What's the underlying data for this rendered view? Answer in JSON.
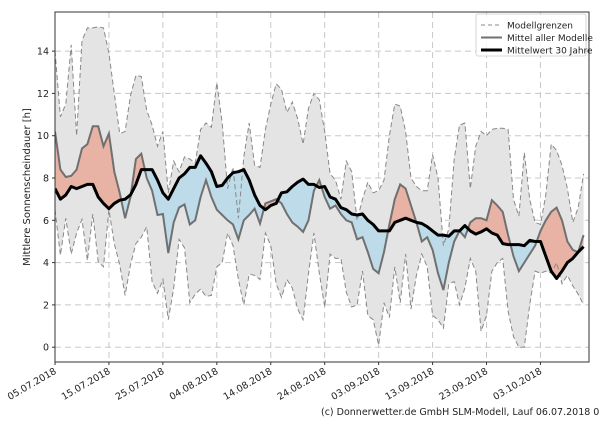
{
  "chart_data": {
    "type": "line",
    "ylabel": "Mittlere Sonnenscheindauer [h]",
    "xlabel": "",
    "ylim": [
      -0.7,
      15.85
    ],
    "xlim": [
      "05.07.2018",
      "12.10.2018"
    ],
    "yticks": [
      0,
      2,
      4,
      6,
      8,
      10,
      12,
      14
    ],
    "xticks": [
      "05.07.2018",
      "15.07.2018",
      "25.07.2018",
      "04.08.2018",
      "14.08.2018",
      "24.08.2018",
      "03.09.2018",
      "13.09.2018",
      "23.09.2018",
      "03.10.2018"
    ],
    "grid": true,
    "legend_position": "top-right",
    "legend": [
      {
        "label": "Modellgrenzen",
        "style": "dashed",
        "color": "#888888"
      },
      {
        "label": "Mittel aller Modelle",
        "style": "solid",
        "color": "#707070"
      },
      {
        "label": "Mittelwert 30 Jahre",
        "style": "solid-thick",
        "color": "#000000"
      }
    ],
    "colors": {
      "band": "#e4e4e4",
      "above": "#e8b2a4",
      "below": "#bddbe8"
    },
    "x": [
      "05.07.2018",
      "06.07.2018",
      "07.07.2018",
      "08.07.2018",
      "09.07.2018",
      "10.07.2018",
      "11.07.2018",
      "12.07.2018",
      "13.07.2018",
      "14.07.2018",
      "15.07.2018",
      "16.07.2018",
      "17.07.2018",
      "18.07.2018",
      "19.07.2018",
      "20.07.2018",
      "21.07.2018",
      "22.07.2018",
      "23.07.2018",
      "24.07.2018",
      "25.07.2018",
      "26.07.2018",
      "27.07.2018",
      "28.07.2018",
      "29.07.2018",
      "30.07.2018",
      "31.07.2018",
      "01.08.2018",
      "02.08.2018",
      "03.08.2018",
      "04.08.2018",
      "05.08.2018",
      "06.08.2018",
      "07.08.2018",
      "08.08.2018",
      "09.08.2018",
      "10.08.2018",
      "11.08.2018",
      "12.08.2018",
      "13.08.2018",
      "14.08.2018",
      "15.08.2018",
      "16.08.2018",
      "17.08.2018",
      "18.08.2018",
      "19.08.2018",
      "20.08.2018",
      "21.08.2018",
      "22.08.2018",
      "23.08.2018",
      "24.08.2018",
      "25.08.2018",
      "26.08.2018",
      "27.08.2018",
      "28.08.2018",
      "29.08.2018",
      "30.08.2018",
      "31.08.2018",
      "01.09.2018",
      "02.09.2018",
      "03.09.2018",
      "04.09.2018",
      "05.09.2018",
      "06.09.2018",
      "07.09.2018",
      "08.09.2018",
      "09.09.2018",
      "10.09.2018",
      "11.09.2018",
      "12.09.2018",
      "13.09.2018",
      "14.09.2018",
      "15.09.2018",
      "16.09.2018",
      "17.09.2018",
      "18.09.2018",
      "19.09.2018",
      "20.09.2018",
      "21.09.2018",
      "22.09.2018",
      "23.09.2018",
      "24.09.2018",
      "25.09.2018",
      "26.09.2018",
      "27.09.2018",
      "28.09.2018",
      "29.09.2018",
      "30.09.2018",
      "01.10.2018",
      "02.10.2018",
      "03.10.2018",
      "04.10.2018",
      "05.10.2018",
      "06.10.2018",
      "07.10.2018",
      "08.10.2018",
      "09.10.2018",
      "10.10.2018",
      "11.10.2018"
    ],
    "series": [
      {
        "name": "Modellgrenzen",
        "role": "upper",
        "values": [
          14.0,
          10.9,
          11.5,
          14.3,
          10.0,
          14.5,
          15.1,
          15.1,
          15.15,
          15.1,
          13.9,
          12.0,
          10.1,
          10.2,
          11.9,
          12.85,
          12.8,
          11.2,
          10.5,
          9.5,
          10.2,
          7.3,
          8.8,
          8.3,
          9.0,
          8.9,
          8.7,
          10.3,
          10.6,
          10.4,
          12.5,
          10.6,
          7.5,
          8.5,
          6.1,
          9.0,
          10.6,
          8.6,
          8.5,
          10.3,
          11.5,
          12.45,
          12.2,
          11.1,
          11.6,
          10.8,
          9.6,
          11.3,
          12.0,
          11.7,
          10.2,
          8.2,
          7.9,
          7.0,
          8.8,
          8.3,
          6.0,
          7.0,
          7.8,
          7.3,
          7.4,
          7.9,
          10.0,
          11.5,
          11.4,
          10.2,
          8.0,
          7.6,
          7.4,
          7.4,
          9.1,
          8.0,
          4.8,
          5.6,
          8.9,
          10.5,
          10.6,
          7.5,
          9.5,
          10.2,
          10.0,
          10.3,
          10.35,
          10.35,
          10.3,
          7.0,
          6.2,
          9.2,
          7.0,
          5.9,
          5.8,
          7.2,
          9.6,
          9.3,
          8.6,
          7.5,
          5.9,
          6.6,
          8.2
        ]
      },
      {
        "name": "Modellgrenzen",
        "role": "lower",
        "values": [
          6.5,
          4.35,
          6.1,
          4.4,
          5.4,
          6.05,
          4.1,
          6.3,
          4.05,
          3.8,
          6.5,
          4.9,
          3.9,
          2.45,
          3.9,
          4.9,
          5.2,
          5.7,
          3.1,
          2.55,
          3.2,
          1.3,
          2.8,
          5.1,
          4.7,
          2.1,
          2.5,
          2.75,
          2.4,
          2.45,
          3.8,
          4.0,
          5.4,
          4.8,
          3.2,
          2.0,
          3.45,
          3.4,
          3.2,
          5.4,
          4.8,
          3.0,
          2.35,
          3.2,
          2.8,
          1.8,
          1.3,
          3.5,
          5.4,
          3.5,
          1.9,
          4.4,
          4.2,
          4.2,
          2.6,
          1.9,
          2.0,
          3.6,
          1.5,
          1.3,
          0.1,
          2.1,
          1.4,
          3.8,
          2.1,
          4.4,
          1.8,
          3.4,
          4.4,
          3.8,
          1.5,
          1.3,
          0.9,
          3.0,
          3.1,
          2.0,
          2.8,
          4.2,
          3.6,
          0.75,
          1.5,
          3.6,
          4.0,
          4.2,
          1.7,
          0.5,
          0.0,
          0.0,
          2.0,
          3.6,
          3.5,
          3.6,
          3.5,
          4.0,
          3.0,
          3.4,
          2.9,
          2.5,
          2.0
        ]
      },
      {
        "name": "Mittel aller Modelle",
        "role": "models",
        "values": [
          10.2,
          8.4,
          8.05,
          8.1,
          8.4,
          9.4,
          9.6,
          10.45,
          10.45,
          9.5,
          10.1,
          8.3,
          7.3,
          6.1,
          7.1,
          8.9,
          9.15,
          8.0,
          7.4,
          6.25,
          6.3,
          4.45,
          5.9,
          6.6,
          6.75,
          5.8,
          6.0,
          7.1,
          7.9,
          7.1,
          6.5,
          6.25,
          6.0,
          5.8,
          5.1,
          6.0,
          6.25,
          6.55,
          5.85,
          6.8,
          6.9,
          7.0,
          6.8,
          6.3,
          5.9,
          5.7,
          5.45,
          6.0,
          7.4,
          7.9,
          7.1,
          6.55,
          6.7,
          6.3,
          6.0,
          5.9,
          5.1,
          5.2,
          4.5,
          3.7,
          3.5,
          4.5,
          5.8,
          7.0,
          7.7,
          7.5,
          6.7,
          5.9,
          5.0,
          5.2,
          4.6,
          3.5,
          2.7,
          4.0,
          5.0,
          5.5,
          5.2,
          5.9,
          6.1,
          6.1,
          6.0,
          6.95,
          6.7,
          6.4,
          5.3,
          4.3,
          3.6,
          4.0,
          4.4,
          4.8,
          5.5,
          6.0,
          6.4,
          6.6,
          6.0,
          5.0,
          4.6,
          4.5,
          5.3
        ]
      },
      {
        "name": "Mittelwert 30 Jahre",
        "role": "climate",
        "values": [
          7.5,
          7.0,
          7.2,
          7.6,
          7.5,
          7.6,
          7.7,
          7.7,
          7.1,
          6.8,
          6.55,
          6.8,
          6.95,
          7.0,
          7.2,
          7.7,
          8.4,
          8.4,
          8.4,
          7.9,
          7.3,
          7.0,
          7.5,
          8.0,
          8.2,
          8.5,
          8.5,
          9.05,
          8.7,
          8.3,
          7.6,
          7.65,
          8.0,
          8.25,
          8.3,
          8.4,
          7.9,
          7.2,
          6.7,
          6.5,
          6.7,
          6.8,
          7.3,
          7.35,
          7.6,
          7.8,
          7.95,
          7.7,
          7.7,
          7.55,
          7.6,
          7.1,
          7.0,
          6.6,
          6.5,
          6.3,
          6.25,
          6.3,
          6.0,
          5.8,
          5.5,
          5.5,
          5.5,
          5.9,
          6.0,
          6.1,
          6.0,
          5.9,
          5.85,
          5.7,
          5.5,
          5.3,
          5.3,
          5.25,
          5.5,
          5.5,
          5.75,
          5.5,
          5.35,
          5.45,
          5.6,
          5.4,
          5.3,
          4.9,
          4.85,
          4.85,
          4.85,
          4.8,
          5.05,
          5.0,
          5.0,
          4.3,
          3.6,
          3.25,
          3.6,
          4.0,
          4.2,
          4.5,
          4.75
        ]
      }
    ]
  },
  "footer": "(c) Donnerwetter.de GmbH SLM-Modell, Lauf 06.07.2018 00 Uhr"
}
